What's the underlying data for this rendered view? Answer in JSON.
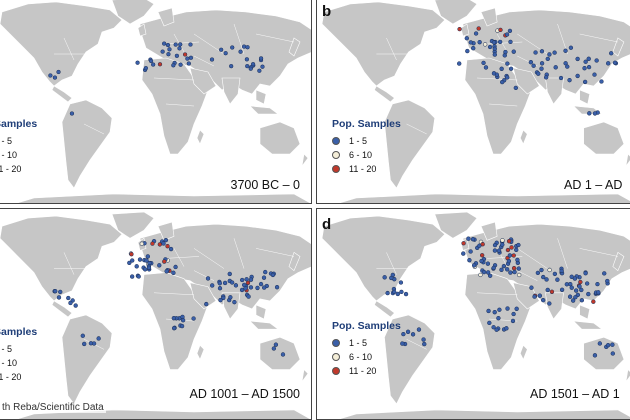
{
  "panels": [
    {
      "id": "a",
      "letter": "",
      "period": "3700 BC – 0",
      "legend_title": "Samples"
    },
    {
      "id": "b",
      "letter": "b",
      "period": "AD 1 – AD",
      "legend_title": "Pop. Samples"
    },
    {
      "id": "c",
      "letter": "",
      "period": "AD 1001 – AD 1500",
      "legend_title": "Samples"
    },
    {
      "id": "d",
      "letter": "d",
      "period": "AD 1501 – AD 1",
      "legend_title": "Pop. Samples"
    }
  ],
  "legend_bins": [
    {
      "label": "1 - 5",
      "color": "#3a5fa8"
    },
    {
      "label": "6 - 10",
      "color": "#f4eed8"
    },
    {
      "label": "11 - 20",
      "color": "#c0392b"
    }
  ],
  "legend_bins_cut": [
    {
      "label": "1 - 5"
    },
    {
      "label": "6 - 10"
    },
    {
      "label": "11 - 20"
    }
  ],
  "colors": {
    "land": "#c6c6c6",
    "ocean": "#ffffff",
    "low": "#3a5fa8",
    "mid": "#f4eed8",
    "high": "#c0392b"
  },
  "credit": "th Reba/Scientific Data"
}
